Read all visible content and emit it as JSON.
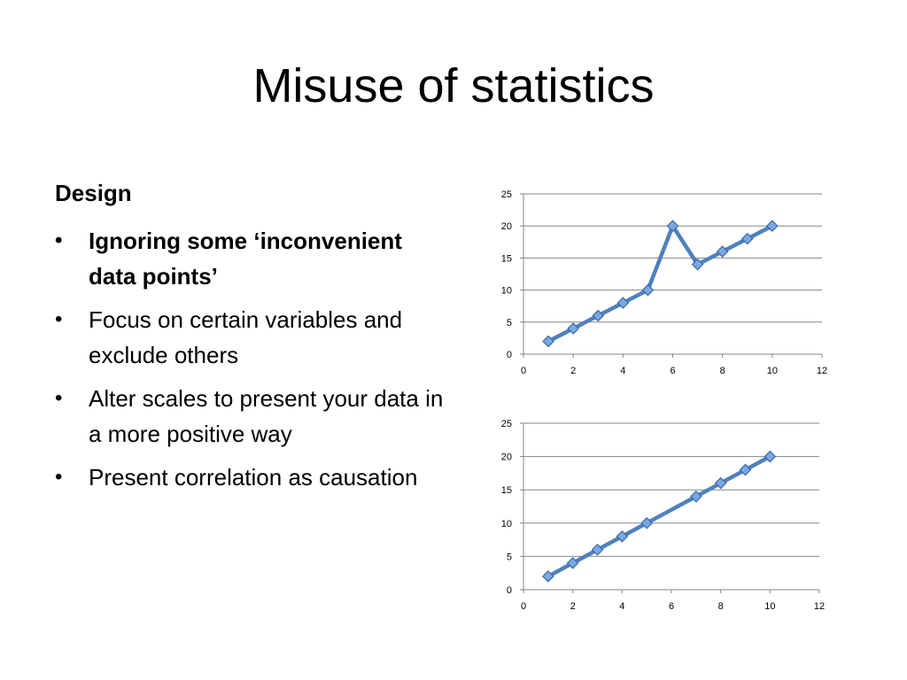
{
  "slide": {
    "title": "Misuse of statistics",
    "section_heading": "Design",
    "bullets": [
      {
        "text": "Ignoring some ‘inconvenient data points’",
        "bold": true
      },
      {
        "text": "Focus on certain variables and exclude others",
        "bold": false
      },
      {
        "text": "Alter scales to present your data in a more positive way",
        "bold": false
      },
      {
        "text": "Present correlation as causation",
        "bold": false
      }
    ]
  },
  "colors": {
    "line": "#4F81BD",
    "marker_fill": "#7BA7E0",
    "marker_stroke": "#3A6AA8",
    "grid": "#868686",
    "axis": "#868686"
  },
  "chart_data": [
    {
      "type": "line",
      "title": "",
      "xlabel": "",
      "ylabel": "",
      "x": [
        1,
        2,
        3,
        4,
        5,
        6,
        7,
        8,
        9,
        10
      ],
      "series": [
        {
          "values": [
            2,
            4,
            6,
            8,
            10,
            20,
            14,
            16,
            18,
            20
          ]
        }
      ],
      "xlim": [
        0,
        12
      ],
      "ylim": [
        0,
        25
      ],
      "xticks": [
        0,
        2,
        4,
        6,
        8,
        10,
        12
      ],
      "yticks": [
        0,
        5,
        10,
        15,
        20,
        25
      ],
      "grid": "horizontal",
      "legend": "none"
    },
    {
      "type": "line",
      "title": "",
      "xlabel": "",
      "ylabel": "",
      "x": [
        1,
        2,
        3,
        4,
        5,
        7,
        8,
        9,
        10
      ],
      "series": [
        {
          "values": [
            2,
            4,
            6,
            8,
            10,
            14,
            16,
            18,
            20
          ]
        }
      ],
      "xlim": [
        0,
        12
      ],
      "ylim": [
        0,
        25
      ],
      "xticks": [
        0,
        2,
        4,
        6,
        8,
        10,
        12
      ],
      "yticks": [
        0,
        5,
        10,
        15,
        20,
        25
      ],
      "grid": "horizontal",
      "legend": "none"
    }
  ]
}
